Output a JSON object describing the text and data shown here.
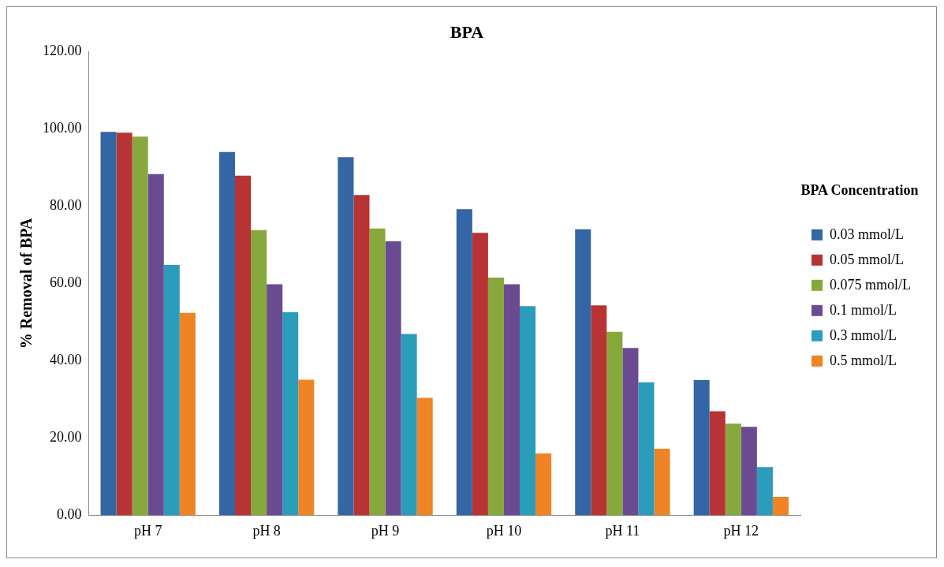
{
  "chart_data": {
    "type": "bar",
    "title": "BPA",
    "ylabel": "% Removal of BPA",
    "legend_title": "BPA Concentration",
    "categories": [
      "pH 7",
      "pH 8",
      "pH 9",
      "pH 10",
      "pH 11",
      "pH 12"
    ],
    "series": [
      {
        "name": "0.03 mmol/L",
        "color": "#3465a4",
        "values": [
          99.2,
          94.0,
          92.7,
          79.2,
          74.0,
          35.0
        ]
      },
      {
        "name": "0.05 mmol/L",
        "color": "#b83333",
        "values": [
          99.0,
          87.9,
          82.9,
          73.1,
          54.3,
          26.9
        ]
      },
      {
        "name": "0.075 mmol/L",
        "color": "#86a83c",
        "values": [
          98.0,
          73.8,
          74.2,
          61.5,
          47.5,
          23.7
        ]
      },
      {
        "name": "0.1 mmol/L",
        "color": "#6a4b91",
        "values": [
          88.3,
          59.8,
          70.9,
          59.8,
          43.3,
          22.9
        ]
      },
      {
        "name": "0.3 mmol/L",
        "color": "#2c9cbb",
        "values": [
          64.8,
          52.6,
          46.9,
          54.1,
          34.4,
          12.5
        ]
      },
      {
        "name": "0.5 mmol/L",
        "color": "#ee8424",
        "values": [
          52.4,
          35.1,
          30.4,
          16.0,
          17.2,
          4.8
        ]
      }
    ],
    "ylim": [
      0,
      120
    ],
    "yticks": [
      {
        "value": 0,
        "label": "0.00"
      },
      {
        "value": 20,
        "label": "20.00"
      },
      {
        "value": 40,
        "label": "40.00"
      },
      {
        "value": 60,
        "label": "60.00"
      },
      {
        "value": 80,
        "label": "80.00"
      },
      {
        "value": 100,
        "label": "100.00"
      },
      {
        "value": 120,
        "label": "120.00"
      }
    ],
    "grid": false,
    "legend": "right"
  }
}
